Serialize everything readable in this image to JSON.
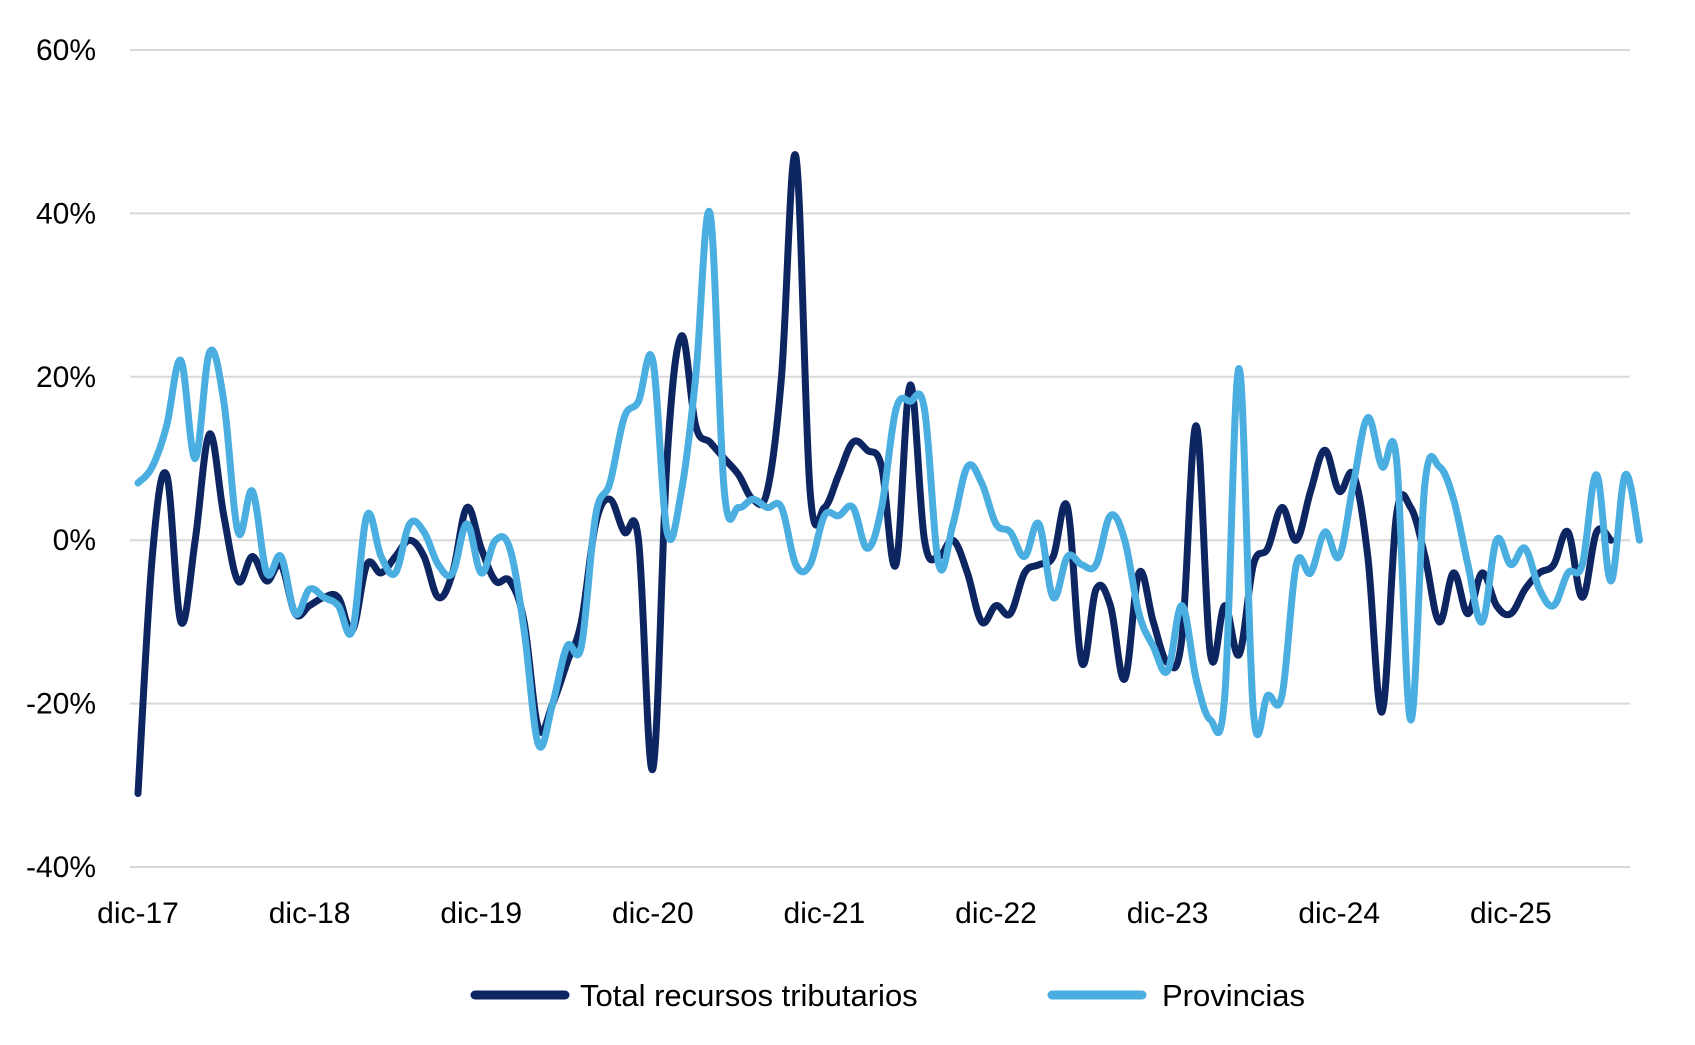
{
  "chart_data": {
    "type": "line",
    "title": "",
    "xlabel": "",
    "ylabel": "",
    "ylim": [
      -0.4,
      0.6
    ],
    "y_ticks": [
      0.6,
      0.4,
      0.2,
      0.0,
      -0.2,
      -0.4
    ],
    "y_tick_labels": [
      "60%",
      "40%",
      "20%",
      "0%",
      "-20%",
      "-40%"
    ],
    "x_start": "2017-12",
    "x_tick_labels": [
      "dic-17",
      "dic-18",
      "dic-19",
      "dic-20",
      "dic-21",
      "dic-22",
      "dic-23",
      "dic-24",
      "dic-25"
    ],
    "grid": "horizontal",
    "legend_position": "bottom",
    "series": [
      {
        "name": "Total recursos tributarios",
        "color": "#0d2560",
        "values": [
          -0.31,
          -0.02,
          0.08,
          -0.1,
          0.0,
          0.13,
          0.03,
          -0.05,
          -0.02,
          -0.05,
          -0.03,
          -0.09,
          -0.08,
          -0.07,
          -0.07,
          -0.11,
          -0.03,
          -0.04,
          -0.02,
          0.0,
          -0.02,
          -0.07,
          -0.04,
          0.04,
          -0.01,
          -0.05,
          -0.05,
          -0.1,
          -0.23,
          -0.2,
          -0.15,
          -0.1,
          0.02,
          0.05,
          0.01,
          0.0,
          -0.28,
          0.1,
          0.25,
          0.14,
          0.12,
          0.1,
          0.08,
          0.05,
          0.06,
          0.2,
          0.47,
          0.06,
          0.04,
          0.08,
          0.12,
          0.11,
          0.09,
          -0.03,
          0.19,
          0.0,
          -0.02,
          0.0,
          -0.04,
          -0.1,
          -0.08,
          -0.09,
          -0.04,
          -0.03,
          -0.02,
          0.04,
          -0.15,
          -0.06,
          -0.08,
          -0.17,
          -0.04,
          -0.1,
          -0.15,
          -0.12,
          0.14,
          -0.14,
          -0.08,
          -0.14,
          -0.03,
          -0.01,
          0.04,
          0.0,
          0.06,
          0.11,
          0.06,
          0.08,
          -0.02,
          -0.21,
          0.03,
          0.04,
          -0.02,
          -0.1,
          -0.04,
          -0.09,
          -0.04,
          -0.08,
          -0.09,
          -0.06,
          -0.04,
          -0.03,
          0.01,
          -0.07,
          0.01,
          0.0
        ]
      },
      {
        "name": "Provincias",
        "color": "#4aaee0",
        "values": [
          0.07,
          0.09,
          0.14,
          0.22,
          0.1,
          0.23,
          0.17,
          0.01,
          0.06,
          -0.04,
          -0.02,
          -0.09,
          -0.06,
          -0.07,
          -0.08,
          -0.11,
          0.03,
          -0.02,
          -0.04,
          0.02,
          0.01,
          -0.03,
          -0.04,
          0.02,
          -0.04,
          0.0,
          -0.01,
          -0.11,
          -0.25,
          -0.2,
          -0.13,
          -0.13,
          0.03,
          0.07,
          0.15,
          0.17,
          0.22,
          0.01,
          0.06,
          0.2,
          0.4,
          0.06,
          0.04,
          0.05,
          0.04,
          0.04,
          -0.03,
          -0.03,
          0.03,
          0.03,
          0.04,
          -0.01,
          0.04,
          0.16,
          0.17,
          0.16,
          -0.03,
          0.02,
          0.09,
          0.07,
          0.02,
          0.01,
          -0.02,
          0.02,
          -0.07,
          -0.02,
          -0.03,
          -0.03,
          0.03,
          0.0,
          -0.09,
          -0.13,
          -0.16,
          -0.08,
          -0.17,
          -0.22,
          -0.19,
          0.21,
          -0.21,
          -0.19,
          -0.19,
          -0.03,
          -0.04,
          0.01,
          -0.02,
          0.07,
          0.15,
          0.09,
          0.1,
          -0.22,
          0.07,
          0.09,
          0.05,
          -0.03,
          -0.1,
          0.0,
          -0.03,
          -0.01,
          -0.06,
          -0.08,
          -0.04,
          -0.03,
          0.08,
          -0.05,
          0.08,
          0.0
        ]
      }
    ]
  }
}
